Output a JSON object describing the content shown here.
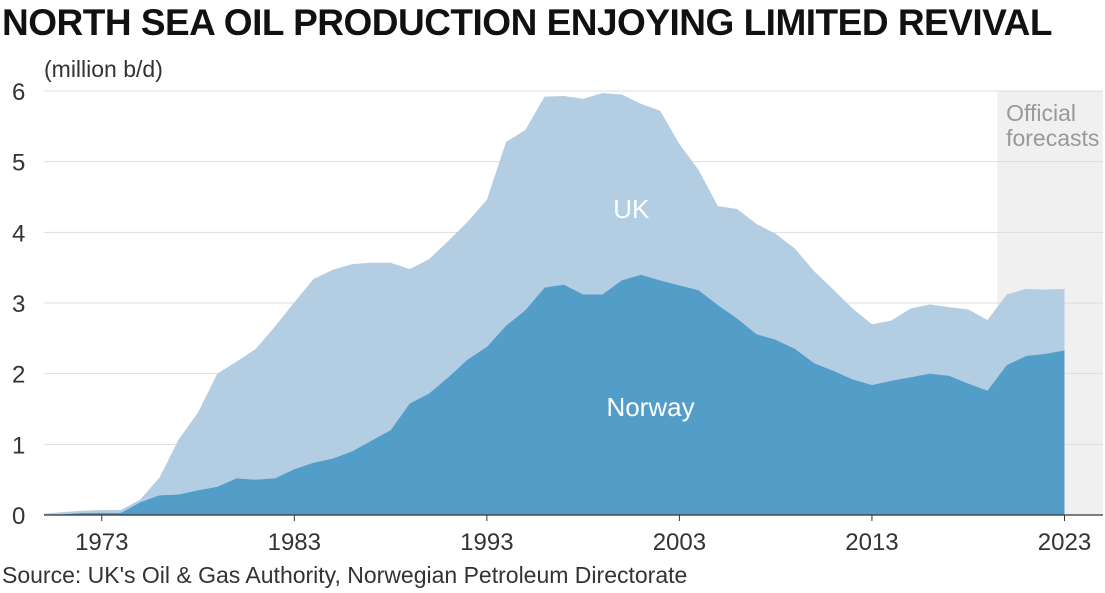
{
  "title": "NORTH SEA OIL PRODUCTION ENJOYING LIMITED REVIVAL",
  "unit_label": "(million b/d)",
  "source": "Source: UK's Oil & Gas Authority, Norwegian Petroleum Directorate",
  "forecast_label": [
    "Official",
    "forecasts"
  ],
  "colors": {
    "uk": "#b3cde3",
    "norway": "#539ec9",
    "forecast_band": "#f0f0f0",
    "grid": "#dddddd"
  },
  "chart_data": {
    "type": "area",
    "stacked": true,
    "x": [
      1970,
      1971,
      1972,
      1973,
      1974,
      1975,
      1976,
      1977,
      1978,
      1979,
      1980,
      1981,
      1982,
      1983,
      1984,
      1985,
      1986,
      1987,
      1988,
      1989,
      1990,
      1991,
      1992,
      1993,
      1994,
      1995,
      1996,
      1997,
      1998,
      1999,
      2000,
      2001,
      2002,
      2003,
      2004,
      2005,
      2006,
      2007,
      2008,
      2009,
      2010,
      2011,
      2012,
      2013,
      2014,
      2015,
      2016,
      2017,
      2018,
      2019,
      2020,
      2021,
      2022,
      2023
    ],
    "series": [
      {
        "name": "Norway",
        "values": [
          0,
          0.01,
          0.03,
          0.03,
          0.03,
          0.18,
          0.28,
          0.29,
          0.35,
          0.4,
          0.52,
          0.5,
          0.52,
          0.65,
          0.74,
          0.8,
          0.9,
          1.05,
          1.2,
          1.58,
          1.72,
          1.95,
          2.2,
          2.38,
          2.68,
          2.9,
          3.22,
          3.26,
          3.12,
          3.12,
          3.32,
          3.4,
          3.32,
          3.25,
          3.18,
          2.97,
          2.78,
          2.56,
          2.48,
          2.35,
          2.15,
          2.04,
          1.92,
          1.84,
          1.9,
          1.95,
          2.0,
          1.97,
          1.86,
          1.76,
          2.12,
          2.25,
          2.28,
          2.33
        ]
      },
      {
        "name": "UK",
        "values": [
          0.02,
          0.03,
          0.03,
          0.04,
          0.04,
          0.04,
          0.25,
          0.78,
          1.1,
          1.6,
          1.65,
          1.85,
          2.15,
          2.36,
          2.6,
          2.67,
          2.65,
          2.52,
          2.37,
          1.9,
          1.9,
          1.93,
          1.95,
          2.08,
          2.6,
          2.55,
          2.7,
          2.67,
          2.77,
          2.85,
          2.63,
          2.42,
          2.4,
          2.0,
          1.7,
          1.4,
          1.55,
          1.56,
          1.5,
          1.42,
          1.3,
          1.15,
          1.0,
          0.86,
          0.85,
          0.97,
          0.98,
          0.97,
          1.05,
          1.0,
          1.0,
          0.95,
          0.91,
          0.87
        ]
      }
    ],
    "area_labels": [
      {
        "text": "UK",
        "x": 1400,
        "y": 4.2
      },
      {
        "text": "Norway",
        "x": 2001.5,
        "y": 1.4
      }
    ],
    "forecast_start": 2019.5,
    "xlim": [
      1970,
      2025
    ],
    "ylim": [
      0,
      6
    ],
    "x_ticks": [
      1973,
      1983,
      1993,
      2003,
      2013,
      2023
    ],
    "y_ticks": [
      0,
      1,
      2,
      3,
      4,
      5,
      6
    ],
    "ylabel": "(million b/d)",
    "grid": "horizontal",
    "legend": "none"
  }
}
